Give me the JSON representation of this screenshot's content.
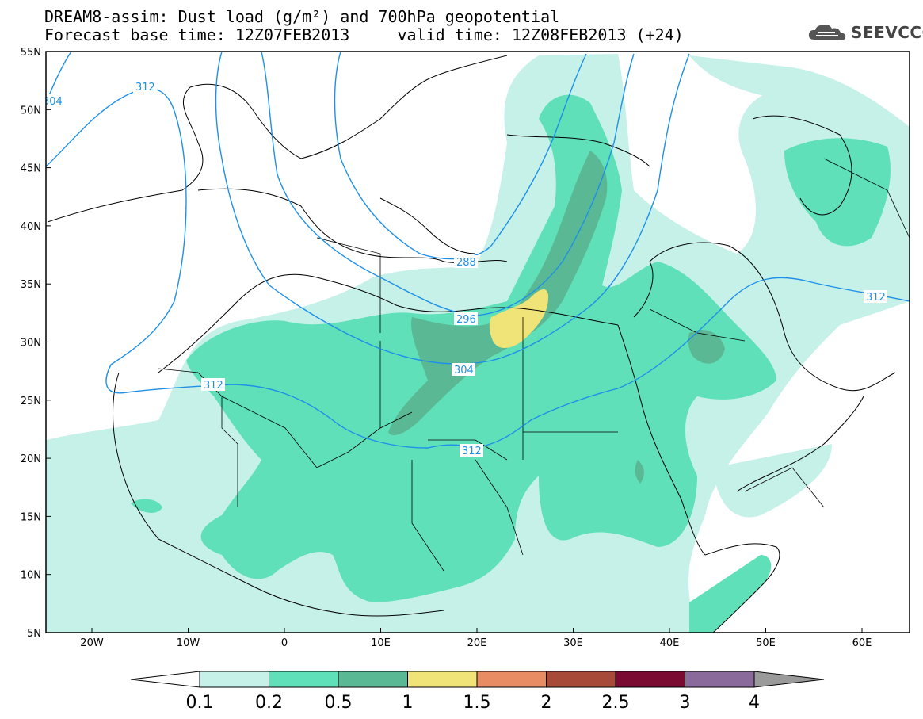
{
  "header": {
    "title_line1": "DREAM8-assim: Dust load (g/m²) and 700hPa geopotential",
    "title_line2": "Forecast base time: 12Z07FEB2013     valid time: 12Z08FEB2013 (+24)"
  },
  "logo": {
    "text": "SEEVCCC",
    "icon": "cloud-icon",
    "color": "#444444"
  },
  "axes": {
    "lat_labels": [
      "55N",
      "50N",
      "45N",
      "40N",
      "35N",
      "30N",
      "25N",
      "20N",
      "15N",
      "10N",
      "5N"
    ],
    "lon_labels": [
      "20W",
      "10W",
      "0",
      "10E",
      "20E",
      "30E",
      "40E",
      "50E",
      "60E"
    ]
  },
  "contours": {
    "labels": [
      "312",
      "304",
      "288",
      "296",
      "304",
      "312",
      "312",
      "312"
    ]
  },
  "colorbar": {
    "ticks": [
      "0.1",
      "0.2",
      "0.5",
      "1",
      "1.5",
      "2",
      "2.5",
      "3",
      "4"
    ],
    "colors": [
      "#c6f1e8",
      "#5fe0b8",
      "#5bb894",
      "#f0e478",
      "#e88c64",
      "#a84a3a",
      "#7a0a32",
      "#8a6a9a",
      "#9a9a9a"
    ]
  }
}
